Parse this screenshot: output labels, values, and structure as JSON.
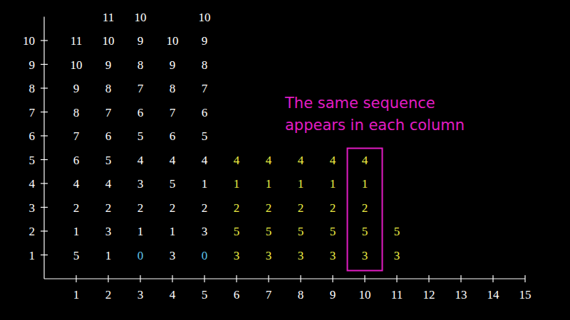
{
  "chart_data": {
    "type": "scatter",
    "xlim": [
      0,
      15
    ],
    "ylim": [
      0,
      11
    ],
    "xticks": [
      1,
      2,
      3,
      4,
      5,
      6,
      7,
      8,
      9,
      10,
      11,
      12,
      13,
      14,
      15
    ],
    "yticks": [
      1,
      2,
      3,
      4,
      5,
      6,
      7,
      8,
      9,
      10
    ],
    "data_labels": true,
    "series": [
      {
        "color": "#ffffff",
        "x": [
          1,
          1,
          1,
          1,
          1,
          1,
          1,
          1,
          1,
          1,
          2,
          2,
          2,
          2,
          2,
          2,
          2,
          2,
          2,
          2,
          2,
          3,
          3,
          3,
          3,
          3,
          3,
          3,
          3,
          3,
          3,
          4,
          4,
          4,
          4,
          4,
          4,
          4,
          4,
          4,
          4,
          5,
          5,
          5,
          5,
          5,
          5,
          5,
          5,
          5,
          5
        ],
        "y": [
          1,
          2,
          3,
          4,
          5,
          6,
          7,
          8,
          9,
          10,
          1,
          2,
          3,
          4,
          5,
          6,
          7,
          8,
          9,
          10,
          11,
          2,
          3,
          4,
          5,
          6,
          7,
          8,
          9,
          10,
          11,
          1,
          2,
          3,
          4,
          5,
          6,
          7,
          8,
          9,
          10,
          2,
          3,
          4,
          5,
          6,
          7,
          8,
          9,
          10,
          11
        ],
        "values": [
          5,
          1,
          2,
          4,
          6,
          7,
          8,
          9,
          10,
          11,
          1,
          3,
          2,
          4,
          5,
          6,
          7,
          8,
          9,
          10,
          11,
          1,
          2,
          3,
          4,
          5,
          6,
          7,
          8,
          9,
          10,
          3,
          1,
          2,
          5,
          4,
          6,
          7,
          8,
          9,
          10,
          3,
          2,
          1,
          4,
          5,
          6,
          7,
          8,
          9,
          10
        ]
      },
      {
        "color": "#5ec4ee",
        "x": [
          3,
          5
        ],
        "y": [
          1,
          1
        ],
        "values": [
          0,
          0
        ]
      },
      {
        "color": "#eeee44",
        "x": [
          6,
          6,
          6,
          6,
          6,
          7,
          7,
          7,
          7,
          7,
          8,
          8,
          8,
          8,
          8,
          9,
          9,
          9,
          9,
          9,
          10,
          10,
          10,
          10,
          10,
          11,
          11
        ],
        "y": [
          1,
          2,
          3,
          4,
          5,
          1,
          2,
          3,
          4,
          5,
          1,
          2,
          3,
          4,
          5,
          1,
          2,
          3,
          4,
          5,
          1,
          2,
          3,
          4,
          5,
          1,
          2
        ],
        "values": [
          3,
          5,
          2,
          1,
          4,
          3,
          5,
          2,
          1,
          4,
          3,
          5,
          2,
          1,
          4,
          3,
          5,
          2,
          1,
          4,
          3,
          5,
          2,
          1,
          4,
          3,
          5
        ]
      }
    ],
    "highlight": {
      "x": 10,
      "y": [
        1,
        5
      ],
      "color": "#e31cc4"
    },
    "annotation": {
      "text": [
        "The same sequence",
        "appears in each column"
      ],
      "color": "#e31cc4"
    }
  }
}
